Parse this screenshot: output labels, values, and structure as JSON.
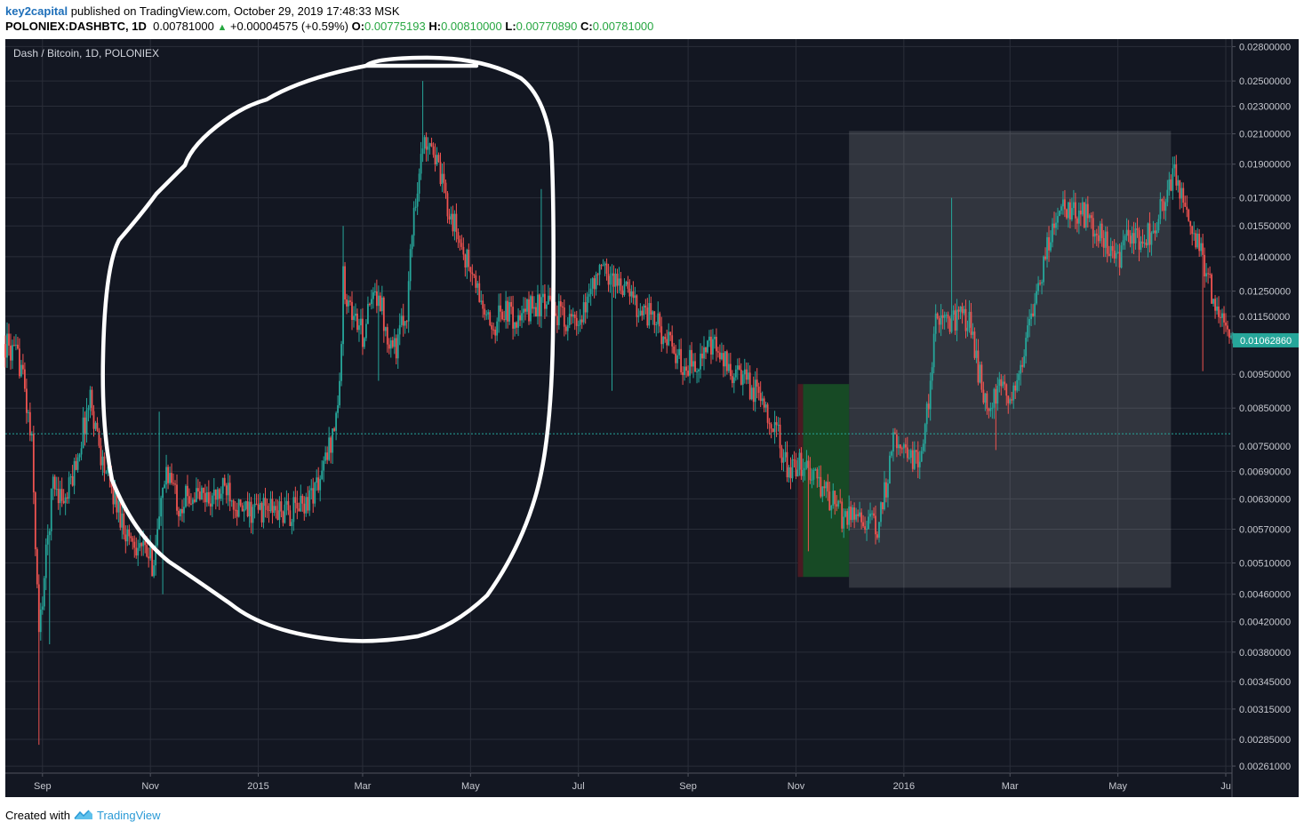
{
  "header": {
    "author": "key2capital",
    "published": "published on TradingView.com, October 29, 2019 17:48:33 MSK",
    "symbol": "POLONIEX:DASHBTC, 1D",
    "last_price": "0.00781000",
    "change": "+0.00004575 (+0.59%)",
    "open_label": "O:",
    "open": "0.00775193",
    "high_label": "H:",
    "high": "0.00810000",
    "low_label": "L:",
    "low": "0.00770890",
    "close_label": "C:",
    "close": "0.00781000"
  },
  "footer": {
    "created_with": "Created with",
    "brand": "TradingView"
  },
  "chart_data": {
    "type": "candlestick",
    "title": "Dash / Bitcoin, 1D, POLONIEX",
    "scale": "log",
    "ylim": [
      0.00255,
      0.0287
    ],
    "x_tick_labels": [
      "Sep",
      "Nov",
      "2015",
      "Mar",
      "May",
      "Jul",
      "Sep",
      "Nov",
      "2016",
      "Mar",
      "May",
      "Ju"
    ],
    "y_tick_labels": [
      "0.02800000",
      "0.02500000",
      "0.02300000",
      "0.02100000",
      "0.01900000",
      "0.01700000",
      "0.01550000",
      "0.01400000",
      "0.01250000",
      "0.01150000",
      "0.01062860",
      "0.00950000",
      "0.00850000",
      "0.00750000",
      "0.00690000",
      "0.00630000",
      "0.00570000",
      "0.00510000",
      "0.00460000",
      "0.00420000",
      "0.00380000",
      "0.00345000",
      "0.00315000",
      "0.00285000",
      "0.00261000"
    ],
    "y_ticks": [
      0.028,
      0.025,
      0.023,
      0.021,
      0.019,
      0.017,
      0.0155,
      0.014,
      0.0125,
      0.0115,
      0.0095,
      0.0085,
      0.0075,
      0.0069,
      0.0063,
      0.0057,
      0.0051,
      0.0046,
      0.0042,
      0.0038,
      0.00345,
      0.00315,
      0.00285,
      0.00261
    ],
    "last_price_label": 0.0106286,
    "current_price_line": 0.00781,
    "grid": true,
    "colors": {
      "background": "#131722",
      "up": "#26a69a",
      "down": "#ef5350",
      "grid": "#2a2e39",
      "last_label_bg": "#26a69a",
      "annotation": "#ffffff",
      "box": "#3a3d48",
      "long_profit": "#174a25",
      "long_loss": "#4a1a22"
    },
    "price_path": [
      [
        "2014-08-11",
        0.0105
      ],
      [
        "2014-08-20",
        0.0098
      ],
      [
        "2014-08-26",
        0.0075
      ],
      [
        "2014-08-30",
        0.004
      ],
      [
        "2014-09-03",
        0.0052
      ],
      [
        "2014-09-07",
        0.0067
      ],
      [
        "2014-09-14",
        0.0062
      ],
      [
        "2014-09-21",
        0.0073
      ],
      [
        "2014-09-28",
        0.0088
      ],
      [
        "2014-10-05",
        0.0071
      ],
      [
        "2014-10-12",
        0.0063
      ],
      [
        "2014-10-19",
        0.0056
      ],
      [
        "2014-10-26",
        0.0054
      ],
      [
        "2014-11-02",
        0.0051
      ],
      [
        "2014-11-06",
        0.0058
      ],
      [
        "2014-11-10",
        0.007
      ],
      [
        "2014-11-17",
        0.0062
      ],
      [
        "2014-11-24",
        0.0064
      ],
      [
        "2014-12-08",
        0.0063
      ],
      [
        "2014-12-15",
        0.0066
      ],
      [
        "2014-12-22",
        0.006
      ],
      [
        "2015-01-05",
        0.0061
      ],
      [
        "2015-01-19",
        0.006
      ],
      [
        "2015-01-29",
        0.0063
      ],
      [
        "2015-02-05",
        0.0067
      ],
      [
        "2015-02-12",
        0.0078
      ],
      [
        "2015-02-16",
        0.009
      ],
      [
        "2015-02-18",
        0.013
      ],
      [
        "2015-02-22",
        0.0118
      ],
      [
        "2015-03-01",
        0.0108
      ],
      [
        "2015-03-05",
        0.0118
      ],
      [
        "2015-03-10",
        0.0126
      ],
      [
        "2015-03-14",
        0.011
      ],
      [
        "2015-03-20",
        0.0104
      ],
      [
        "2015-03-26",
        0.0118
      ],
      [
        "2015-03-30",
        0.0165
      ],
      [
        "2015-04-04",
        0.02
      ],
      [
        "2015-04-08",
        0.021
      ],
      [
        "2015-04-14",
        0.018
      ],
      [
        "2015-04-20",
        0.016
      ],
      [
        "2015-04-28",
        0.014
      ],
      [
        "2015-05-05",
        0.0125
      ],
      [
        "2015-05-12",
        0.011
      ],
      [
        "2015-05-20",
        0.0118
      ],
      [
        "2015-05-28",
        0.0112
      ],
      [
        "2015-06-05",
        0.012
      ],
      [
        "2015-06-15",
        0.0118
      ],
      [
        "2015-06-25",
        0.0114
      ],
      [
        "2015-07-02",
        0.011
      ],
      [
        "2015-07-08",
        0.0128
      ],
      [
        "2015-07-15",
        0.0134
      ],
      [
        "2015-07-25",
        0.0128
      ],
      [
        "2015-08-05",
        0.0118
      ],
      [
        "2015-08-12",
        0.0115
      ],
      [
        "2015-08-20",
        0.0106
      ],
      [
        "2015-08-28",
        0.0098
      ],
      [
        "2015-09-05",
        0.0099
      ],
      [
        "2015-09-15",
        0.0104
      ],
      [
        "2015-09-25",
        0.0096
      ],
      [
        "2015-10-05",
        0.0092
      ],
      [
        "2015-10-15",
        0.0086
      ],
      [
        "2015-10-22",
        0.0077
      ],
      [
        "2015-10-28",
        0.0068
      ],
      [
        "2015-11-05",
        0.0071
      ],
      [
        "2015-11-12",
        0.0067
      ],
      [
        "2015-11-20",
        0.0063
      ],
      [
        "2015-11-28",
        0.0059
      ],
      [
        "2015-12-05",
        0.0061
      ],
      [
        "2015-12-12",
        0.0058
      ],
      [
        "2015-12-17",
        0.0057
      ],
      [
        "2015-12-22",
        0.0066
      ],
      [
        "2015-12-27",
        0.0078
      ],
      [
        "2016-01-03",
        0.0074
      ],
      [
        "2016-01-10",
        0.007
      ],
      [
        "2016-01-15",
        0.0088
      ],
      [
        "2016-01-20",
        0.0118
      ],
      [
        "2016-01-25",
        0.0112
      ],
      [
        "2016-02-01",
        0.0115
      ],
      [
        "2016-02-08",
        0.0112
      ],
      [
        "2016-02-12",
        0.0096
      ],
      [
        "2016-02-18",
        0.0084
      ],
      [
        "2016-02-24",
        0.009
      ],
      [
        "2016-03-01",
        0.0088
      ],
      [
        "2016-03-08",
        0.01
      ],
      [
        "2016-03-15",
        0.012
      ],
      [
        "2016-03-22",
        0.0145
      ],
      [
        "2016-03-28",
        0.0165
      ],
      [
        "2016-04-05",
        0.0163
      ],
      [
        "2016-04-15",
        0.016
      ],
      [
        "2016-04-22",
        0.0148
      ],
      [
        "2016-05-01",
        0.0138
      ],
      [
        "2016-05-08",
        0.015
      ],
      [
        "2016-05-15",
        0.0148
      ],
      [
        "2016-05-22",
        0.0155
      ],
      [
        "2016-05-28",
        0.0172
      ],
      [
        "2016-06-02",
        0.0185
      ],
      [
        "2016-06-08",
        0.016
      ],
      [
        "2016-06-15",
        0.0148
      ],
      [
        "2016-06-22",
        0.0128
      ],
      [
        "2016-06-28",
        0.0112
      ],
      [
        "2016-07-05",
        0.0107
      ]
    ]
  }
}
